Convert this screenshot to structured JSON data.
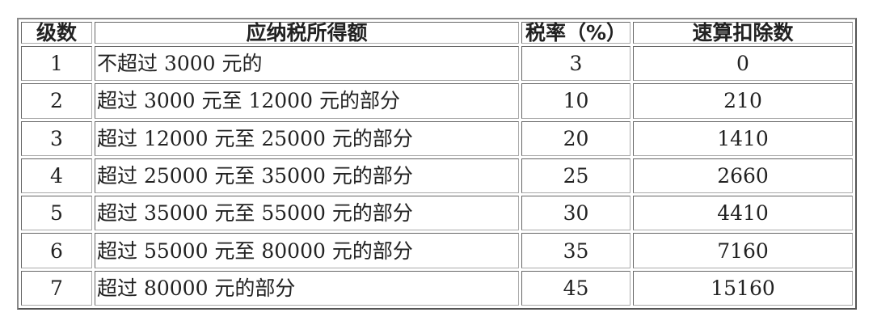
{
  "table": {
    "headers": [
      "级数",
      "应纳税所得额",
      "税率（%）",
      "速算扣除数"
    ],
    "rows": [
      [
        "1",
        "不超过 3000 元的",
        "3",
        "0"
      ],
      [
        "2",
        "超过 3000 元至 12000 元的部分",
        "10",
        "210"
      ],
      [
        "3",
        "超过 12000 元至 25000 元的部分",
        "20",
        "1410"
      ],
      [
        "4",
        "超过 25000 元至 35000 元的部分",
        "25",
        "2660"
      ],
      [
        "5",
        "超过 35000 元至 55000 元的部分",
        "30",
        "4410"
      ],
      [
        "6",
        "超过 55000 元至 80000 元的部分",
        "35",
        "7160"
      ],
      [
        "7",
        "超过 80000 元的部分",
        "45",
        "15160"
      ]
    ]
  }
}
